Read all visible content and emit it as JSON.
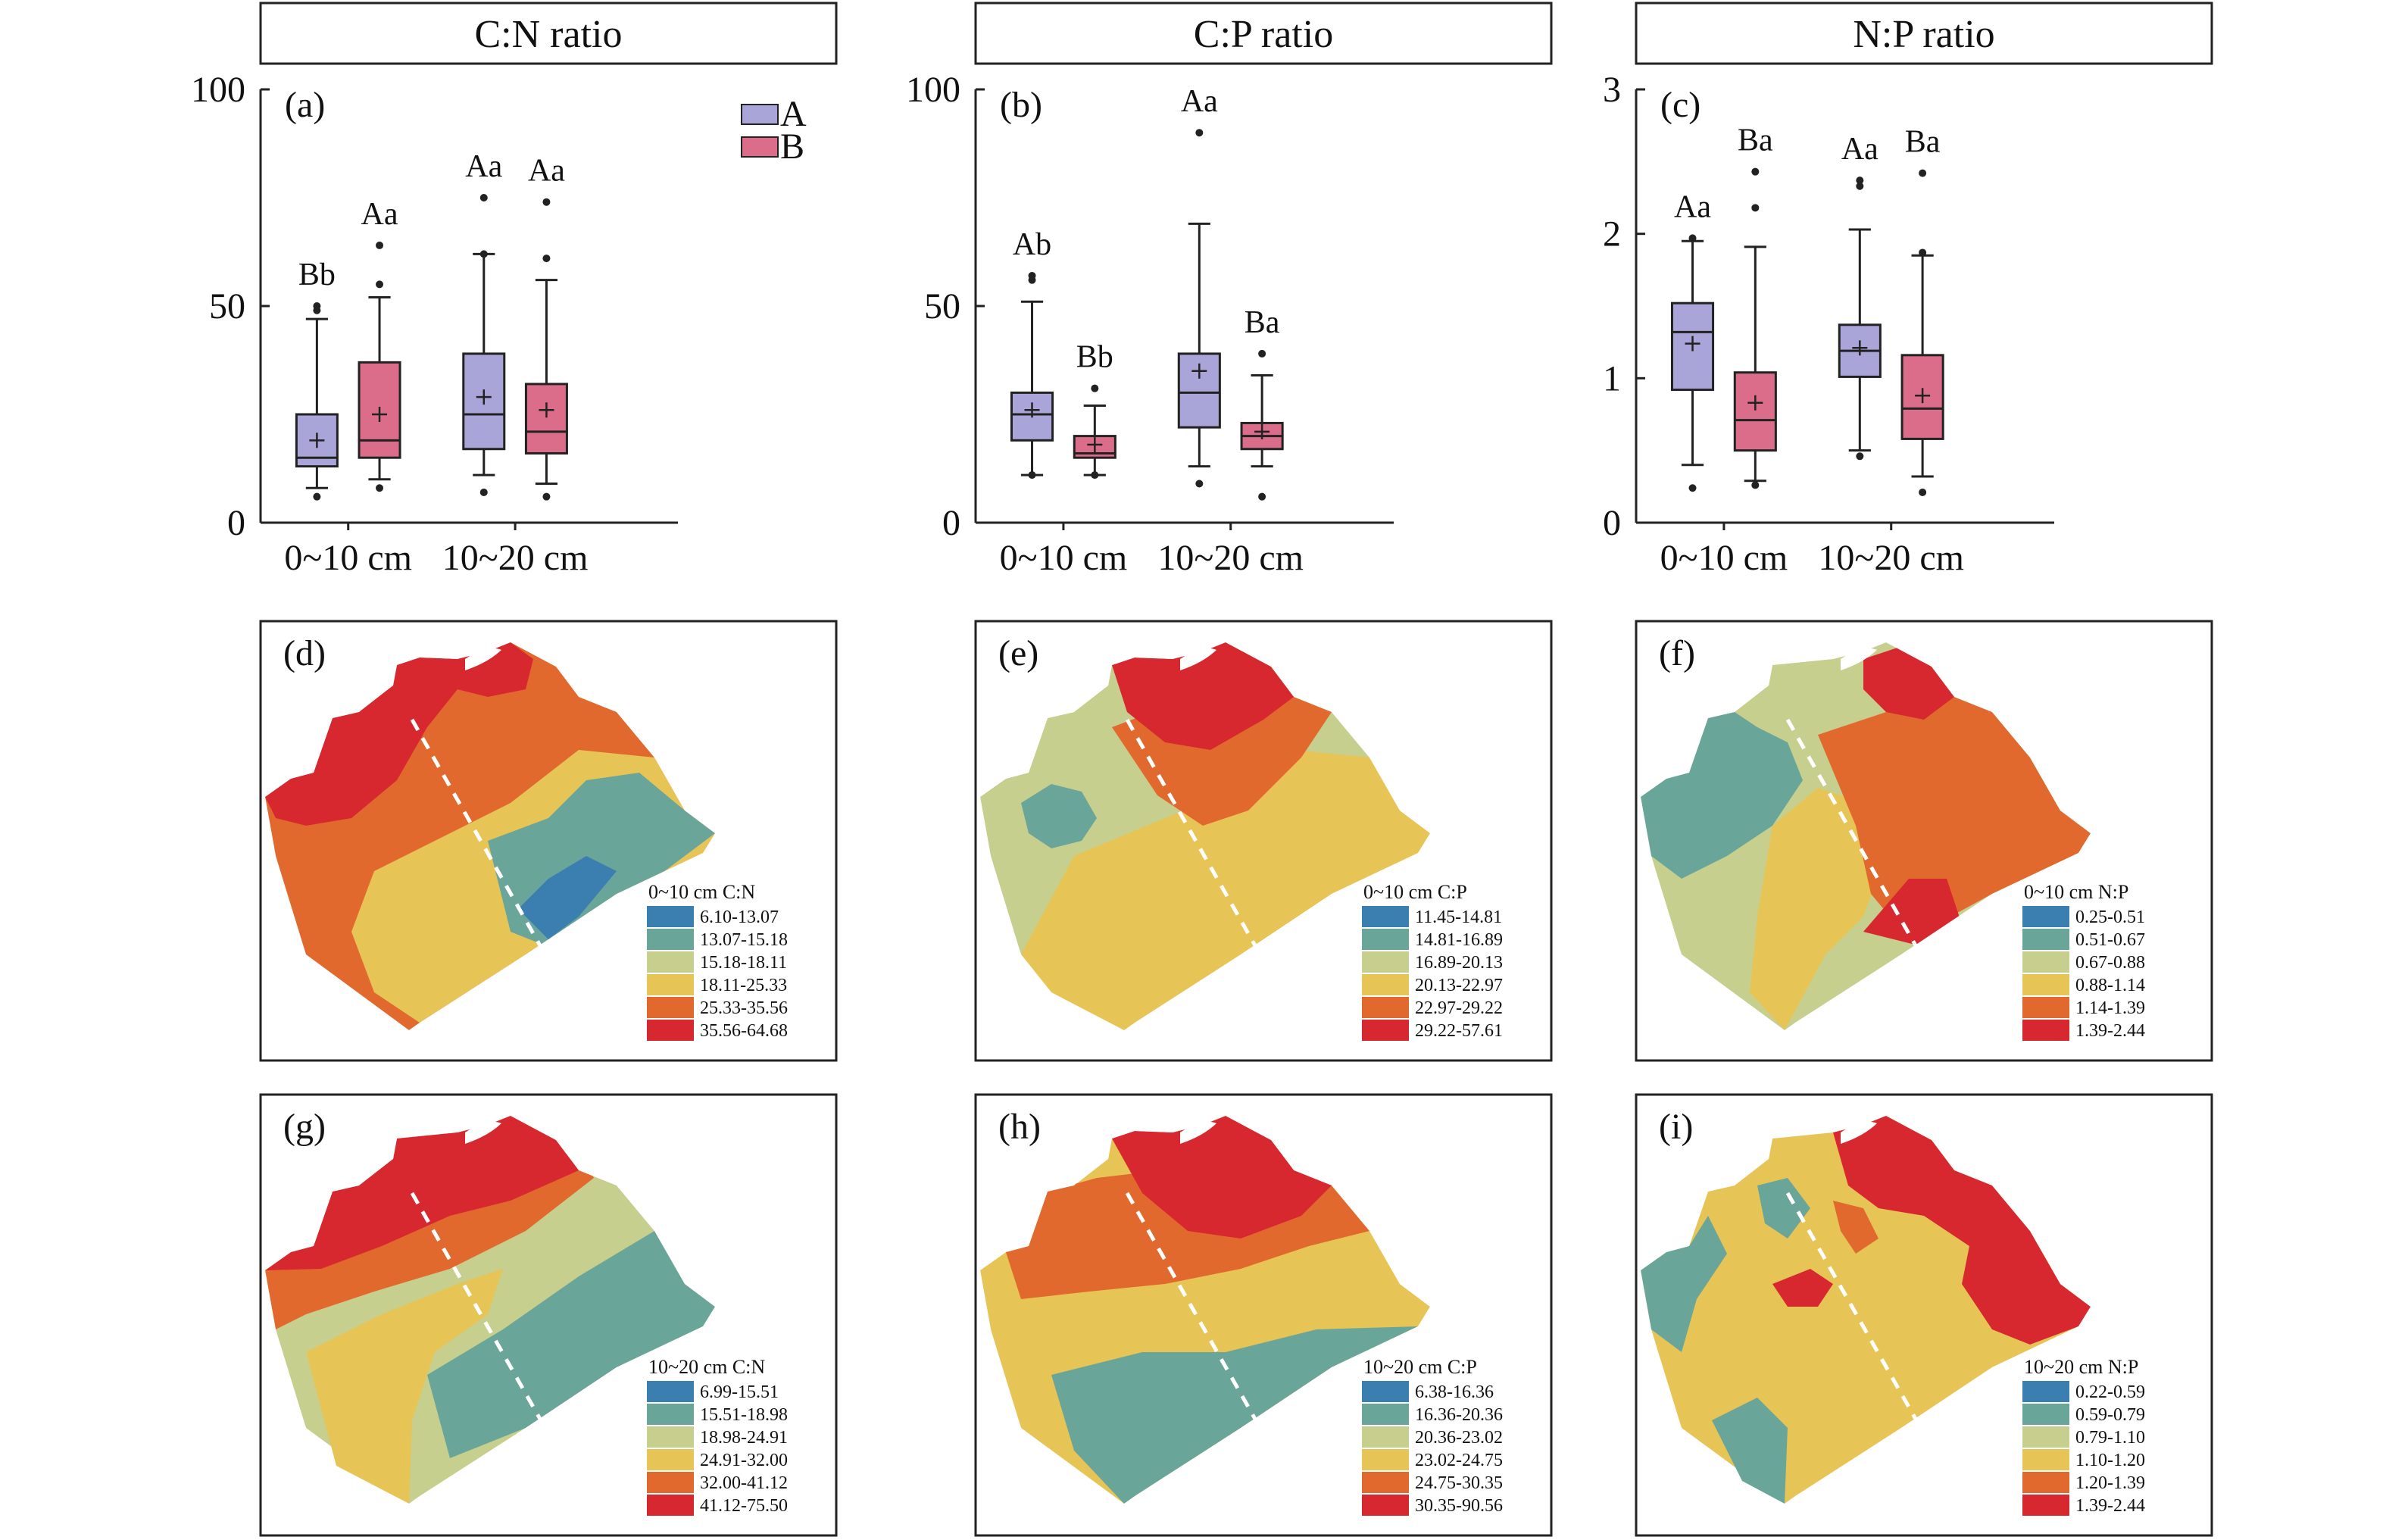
{
  "titles": [
    "C:N ratio",
    "C:P ratio",
    "N:P ratio"
  ],
  "x_categories": [
    "0~10 cm",
    "10~20 cm"
  ],
  "legend": {
    "A": "A",
    "B": "B"
  },
  "colors": {
    "A": "#a9a5d8",
    "B": "#dc6d8a",
    "map": [
      "#3a7fb0",
      "#6aa59a",
      "#c7cf8f",
      "#e7c456",
      "#e2692e",
      "#d7282f"
    ]
  },
  "chart_data": [
    {
      "type": "box",
      "panel": "(a)",
      "ylim": [
        0,
        100
      ],
      "yticks": [
        "0",
        "50",
        "100"
      ],
      "categories": [
        "0~10 cm",
        "10~20 cm"
      ],
      "series": [
        {
          "name": "A",
          "boxes": [
            {
              "q1": 13,
              "median": 15,
              "q3": 25,
              "low": 8,
              "high": 47,
              "mean": 19,
              "outliers": [
                6,
                49,
                50
              ],
              "sig": "Bb"
            },
            {
              "q1": 17,
              "median": 25,
              "q3": 39,
              "low": 11,
              "high": 62,
              "mean": 29,
              "outliers": [
                7,
                62,
                75
              ],
              "sig": "Aa"
            }
          ]
        },
        {
          "name": "B",
          "boxes": [
            {
              "q1": 15,
              "median": 19,
              "q3": 37,
              "low": 10,
              "high": 52,
              "mean": 25,
              "outliers": [
                8,
                55,
                64
              ],
              "sig": "Aa"
            },
            {
              "q1": 16,
              "median": 21,
              "q3": 32,
              "low": 9,
              "high": 56,
              "mean": 26,
              "outliers": [
                6,
                61,
                74
              ],
              "sig": "Aa"
            }
          ]
        }
      ]
    },
    {
      "type": "box",
      "panel": "(b)",
      "ylim": [
        0,
        100
      ],
      "yticks": [
        "0",
        "50",
        "100"
      ],
      "categories": [
        "0~10 cm",
        "10~20 cm"
      ],
      "series": [
        {
          "name": "A",
          "boxes": [
            {
              "q1": 19,
              "median": 25,
              "q3": 30,
              "low": 11,
              "high": 51,
              "mean": 26,
              "outliers": [
                11,
                56,
                57
              ],
              "sig": "Ab"
            },
            {
              "q1": 22,
              "median": 30,
              "q3": 39,
              "low": 13,
              "high": 69,
              "mean": 35,
              "outliers": [
                9,
                90
              ],
              "sig": "Aa"
            }
          ]
        },
        {
          "name": "B",
          "boxes": [
            {
              "q1": 15,
              "median": 16,
              "q3": 20,
              "low": 11,
              "high": 27,
              "mean": 18,
              "outliers": [
                11,
                31
              ],
              "sig": "Bb"
            },
            {
              "q1": 17,
              "median": 20,
              "q3": 23,
              "low": 13,
              "high": 34,
              "mean": 21,
              "outliers": [
                6,
                39
              ],
              "sig": "Ba"
            }
          ]
        }
      ]
    },
    {
      "type": "box",
      "panel": "(c)",
      "ylim": [
        0,
        3
      ],
      "yticks": [
        "0",
        "1",
        "2",
        "3"
      ],
      "categories": [
        "0~10 cm",
        "10~20 cm"
      ],
      "series": [
        {
          "name": "A",
          "boxes": [
            {
              "q1": 0.92,
              "median": 1.32,
              "q3": 1.52,
              "low": 0.4,
              "high": 1.95,
              "mean": 1.24,
              "outliers": [
                0.24,
                1.97
              ],
              "sig": "Aa"
            },
            {
              "q1": 1.01,
              "median": 1.19,
              "q3": 1.37,
              "low": 0.5,
              "high": 2.03,
              "mean": 1.21,
              "outliers": [
                0.46,
                2.33,
                2.37
              ],
              "sig": "Aa"
            }
          ]
        },
        {
          "name": "B",
          "boxes": [
            {
              "q1": 0.5,
              "median": 0.71,
              "q3": 1.04,
              "low": 0.29,
              "high": 1.91,
              "mean": 0.83,
              "outliers": [
                0.26,
                2.18,
                2.43
              ],
              "sig": "Ba"
            },
            {
              "q1": 0.58,
              "median": 0.79,
              "q3": 1.16,
              "low": 0.32,
              "high": 1.85,
              "mean": 0.88,
              "outliers": [
                0.21,
                1.87,
                2.42
              ],
              "sig": "Ba"
            }
          ]
        }
      ]
    },
    {
      "type": "heatmap",
      "panel": "(d)",
      "title": "0~10 cm C:N",
      "classes": [
        "6.10-13.07",
        "13.07-15.18",
        "15.18-18.11",
        "18.11-25.33",
        "25.33-35.56",
        "35.56-64.68"
      ]
    },
    {
      "type": "heatmap",
      "panel": "(e)",
      "title": "0~10 cm C:P",
      "classes": [
        "11.45-14.81",
        "14.81-16.89",
        "16.89-20.13",
        "20.13-22.97",
        "22.97-29.22",
        "29.22-57.61"
      ]
    },
    {
      "type": "heatmap",
      "panel": "(f)",
      "title": "0~10 cm N:P",
      "classes": [
        "0.25-0.51",
        "0.51-0.67",
        "0.67-0.88",
        "0.88-1.14",
        "1.14-1.39",
        "1.39-2.44"
      ]
    },
    {
      "type": "heatmap",
      "panel": "(g)",
      "title": "10~20 cm C:N",
      "classes": [
        "6.99-15.51",
        "15.51-18.98",
        "18.98-24.91",
        "24.91-32.00",
        "32.00-41.12",
        "41.12-75.50"
      ]
    },
    {
      "type": "heatmap",
      "panel": "(h)",
      "title": "10~20 cm C:P",
      "classes": [
        "6.38-16.36",
        "16.36-20.36",
        "20.36-23.02",
        "23.02-24.75",
        "24.75-30.35",
        "30.35-90.56"
      ]
    },
    {
      "type": "heatmap",
      "panel": "(i)",
      "title": "10~20 cm N:P",
      "classes": [
        "0.22-0.59",
        "0.59-0.79",
        "0.79-1.10",
        "1.10-1.20",
        "1.20-1.39",
        "1.39-2.44"
      ]
    }
  ]
}
